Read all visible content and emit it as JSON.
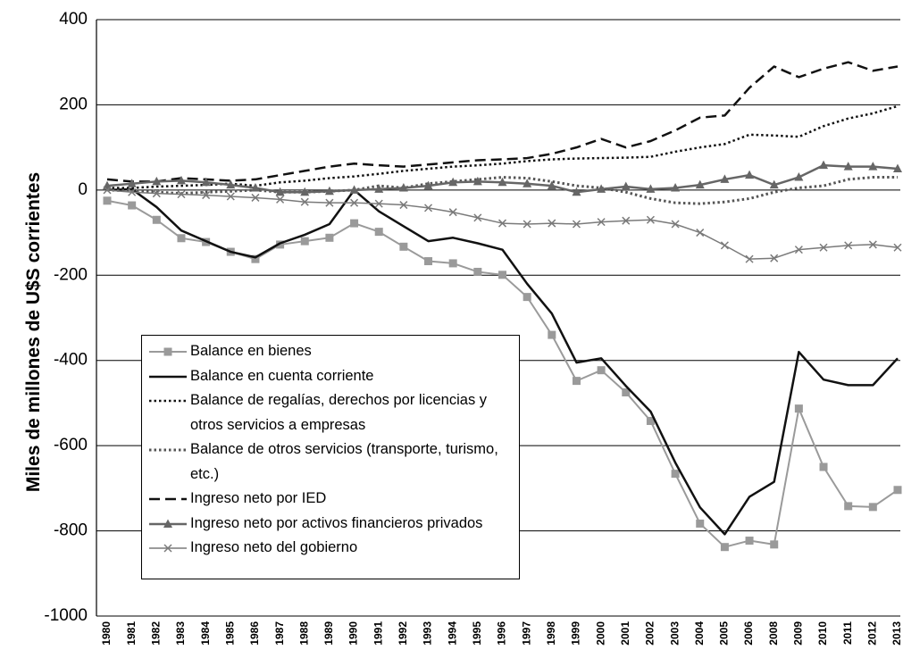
{
  "chart_data": {
    "type": "line",
    "y_label": "Miles de millones de U$S corrientes",
    "categories": [
      "1980",
      "1981",
      "1982",
      "1983",
      "1984",
      "1985",
      "1986",
      "1987",
      "1988",
      "1989",
      "1990",
      "1991",
      "1992",
      "1993",
      "1994",
      "1995",
      "1996",
      "1997",
      "1998",
      "1999",
      "2000",
      "2001",
      "2002",
      "2003",
      "2004",
      "2005",
      "2006",
      "2008",
      "2009",
      "2010",
      "2011",
      "2012",
      "2013"
    ],
    "ylim": [
      -1000,
      400
    ],
    "yticks": [
      -1000,
      -800,
      -600,
      -400,
      -200,
      0,
      200,
      400
    ],
    "grid": true,
    "legend": "lower-left",
    "series": [
      {
        "name": "Balance en bienes",
        "color": "#9a9a9a",
        "width": 2,
        "dash": "solid",
        "marker": "square",
        "values": [
          -25,
          -36,
          -70,
          -113,
          -122,
          -145,
          -162,
          -128,
          -120,
          -112,
          -78,
          -98,
          -133,
          -167,
          -172,
          -192,
          -199,
          -251,
          -340,
          -448,
          -423,
          -475,
          -542,
          -666,
          -783,
          -838,
          -823,
          -832,
          -513,
          -650,
          -742,
          -744,
          -704
        ]
      },
      {
        "name": "Balance en cuenta corriente",
        "color": "#111111",
        "width": 2.5,
        "dash": "solid",
        "marker": "none",
        "values": [
          0,
          2,
          -40,
          -95,
          -120,
          -145,
          -158,
          -125,
          -105,
          -80,
          0,
          -50,
          -85,
          -120,
          -112,
          -125,
          -140,
          -220,
          -290,
          -405,
          -395,
          -460,
          -520,
          -640,
          -745,
          -808,
          -720,
          -685,
          -380,
          -445,
          -458,
          -458,
          -395
        ]
      },
      {
        "name": "Balance de regalías, derechos por licencias y otros servicios a empresas",
        "color": "#111111",
        "width": 2.5,
        "dash": "dotted",
        "marker": "none",
        "values": [
          5,
          5,
          8,
          10,
          12,
          15,
          10,
          18,
          22,
          28,
          32,
          38,
          45,
          50,
          55,
          58,
          62,
          68,
          72,
          74,
          75,
          76,
          78,
          90,
          100,
          108,
          130,
          128,
          125,
          150,
          168,
          180,
          197
        ]
      },
      {
        "name": "Balance de otros servicios (transporte, turismo, etc.)",
        "color": "#555555",
        "width": 3,
        "dash": "dotted",
        "marker": "none",
        "values": [
          0,
          -2,
          -5,
          -8,
          -5,
          -3,
          0,
          -5,
          -5,
          -3,
          0,
          10,
          5,
          15,
          20,
          25,
          30,
          28,
          20,
          10,
          5,
          -5,
          -20,
          -30,
          -32,
          -28,
          -20,
          -5,
          5,
          10,
          25,
          30,
          30
        ]
      },
      {
        "name": "Ingreso neto por IED",
        "color": "#111111",
        "width": 2.5,
        "dash": "dashed",
        "marker": "none",
        "values": [
          25,
          20,
          20,
          28,
          25,
          22,
          25,
          35,
          45,
          55,
          62,
          58,
          55,
          60,
          65,
          70,
          72,
          75,
          85,
          100,
          120,
          100,
          115,
          140,
          170,
          175,
          240,
          290,
          265,
          285,
          300,
          280,
          290
        ]
      },
      {
        "name": "Ingreso neto por activos financieros privados",
        "color": "#666666",
        "width": 2.5,
        "dash": "solid",
        "marker": "triangle",
        "values": [
          10,
          15,
          20,
          22,
          18,
          12,
          5,
          -5,
          -5,
          -3,
          0,
          2,
          5,
          10,
          18,
          20,
          18,
          15,
          10,
          -5,
          2,
          8,
          2,
          5,
          12,
          25,
          35,
          12,
          30,
          58,
          55,
          55,
          50
        ]
      },
      {
        "name": "Ingreso neto del gobierno",
        "color": "#7a7a7a",
        "width": 1.5,
        "dash": "solid",
        "marker": "cross",
        "values": [
          0,
          -5,
          -8,
          -10,
          -12,
          -15,
          -18,
          -22,
          -28,
          -30,
          -30,
          -32,
          -35,
          -42,
          -52,
          -65,
          -78,
          -80,
          -78,
          -80,
          -75,
          -72,
          -70,
          -80,
          -100,
          -130,
          -162,
          -160,
          -140,
          -135,
          -130,
          -128,
          -135
        ]
      }
    ]
  }
}
